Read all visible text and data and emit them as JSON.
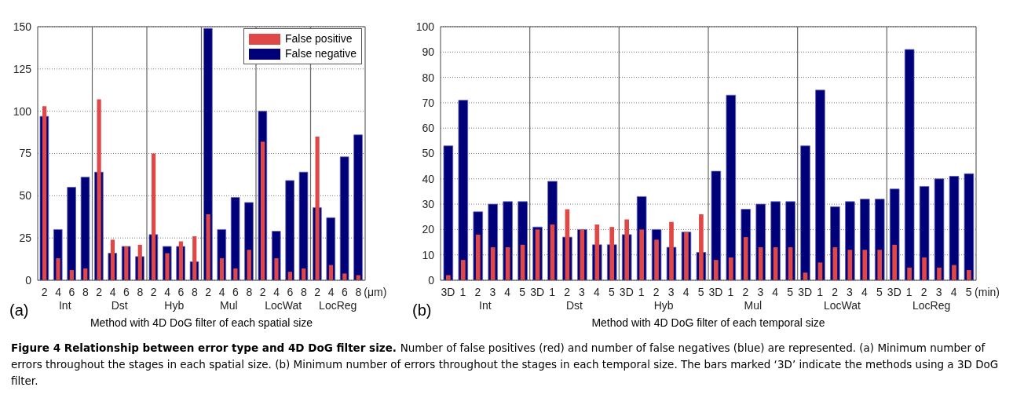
{
  "chart_data": [
    {
      "type": "bar",
      "xlabel": "Method with 4D DoG filter of each spatial size",
      "categories": [
        "2",
        "4",
        "6",
        "8",
        "2",
        "4",
        "6",
        "8",
        "2",
        "4",
        "6",
        "8",
        "2",
        "4",
        "6",
        "8",
        "2",
        "4",
        "6",
        "8",
        "2",
        "4",
        "6",
        "8"
      ],
      "series": [
        {
          "name": "False positive",
          "color": "#e04848",
          "values": [
            103,
            13,
            6,
            7,
            107,
            24,
            20,
            21,
            75,
            16,
            23,
            26,
            39,
            13,
            7,
            18,
            82,
            13,
            5,
            7,
            85,
            9,
            4,
            3
          ]
        },
        {
          "name": "False negative",
          "color": "#000078",
          "values": [
            97,
            30,
            55,
            61,
            64,
            16,
            20,
            14,
            27,
            20,
            20,
            11,
            149,
            30,
            49,
            46,
            100,
            29,
            59,
            64,
            43,
            37,
            73,
            86
          ]
        }
      ],
      "ylim": [
        0,
        150
      ],
      "yticks": [
        0,
        25,
        50,
        75,
        100,
        125,
        150
      ],
      "grid": "y",
      "legend": "top right",
      "annotations": [
        "(a)",
        "Int",
        "Dst",
        "Hyb",
        "Mul",
        "LocWat",
        "LocReg",
        "(μm)"
      ]
    },
    {
      "type": "bar",
      "xlabel": "Method with 4D DoG filter of each temporal size",
      "categories": [
        "3D",
        "1",
        "2",
        "3",
        "4",
        "5",
        "3D",
        "1",
        "2",
        "3",
        "4",
        "5",
        "3D",
        "1",
        "2",
        "3",
        "4",
        "5",
        "3D",
        "1",
        "2",
        "3",
        "4",
        "5",
        "3D",
        "1",
        "2",
        "3",
        "4",
        "5",
        "3D",
        "1",
        "2",
        "3",
        "4",
        "5"
      ],
      "series": [
        {
          "color": "#e04848",
          "values": [
            2,
            8,
            18,
            13,
            13,
            14,
            20,
            22,
            28,
            20,
            22,
            21,
            24,
            20,
            16,
            23,
            19,
            26,
            8,
            9,
            17,
            13,
            13,
            13,
            3,
            7,
            13,
            12,
            12,
            12,
            14,
            5,
            9,
            5,
            6,
            4
          ]
        },
        {
          "color": "#000078",
          "values": [
            53,
            71,
            27,
            30,
            31,
            31,
            21,
            39,
            17,
            20,
            14,
            14,
            18,
            33,
            20,
            13,
            19,
            11,
            43,
            73,
            28,
            30,
            31,
            31,
            53,
            75,
            29,
            31,
            32,
            32,
            36,
            91,
            37,
            40,
            41,
            42
          ]
        }
      ],
      "ylim": [
        0,
        100
      ],
      "yticks": [
        0,
        10,
        20,
        30,
        40,
        50,
        60,
        70,
        80,
        90,
        100
      ],
      "grid": "y",
      "annotations": [
        "(b)",
        "Int",
        "Dst",
        "Hyb",
        "Mul",
        "LocWat",
        "LocReg",
        "(min)"
      ]
    },
    {
      "type": "other",
      "title": "Figure 4 Relationship between error type and 4D DoG filter size.",
      "annotations": [
        "Number of false positives (red) and number of false negatives (blue) are represented. (a) Minimum number of errors throughout the stages in each spatial size. (b) Minimum number of errors throughout the stages in each temporal size. The bars marked ‘3D’ indicate the methods using a 3D DoG filter."
      ]
    }
  ]
}
